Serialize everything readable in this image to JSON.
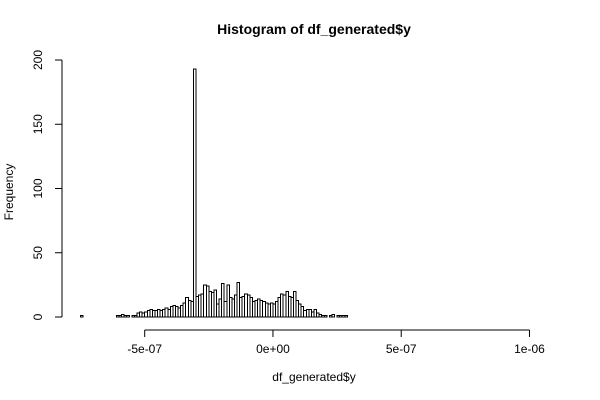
{
  "chart_data": {
    "type": "bar",
    "title": "Histogram of df_generated$y",
    "xlabel": "df_generated$y",
    "ylabel": "Frequency",
    "xlim": [
      -7.6e-07,
      1.08e-06
    ],
    "ylim": [
      0,
      200
    ],
    "bin_width": 1e-08,
    "bin_start": -7.5e-07,
    "x_ticks": [
      {
        "value": -5e-07,
        "label": "-5e-07"
      },
      {
        "value": 0,
        "label": "0e+00"
      },
      {
        "value": 5e-07,
        "label": "5e-07"
      },
      {
        "value": 1e-06,
        "label": "1e-06"
      }
    ],
    "y_ticks": [
      {
        "value": 0,
        "label": "0"
      },
      {
        "value": 50,
        "label": "50"
      },
      {
        "value": 100,
        "label": "100"
      },
      {
        "value": 150,
        "label": "150"
      },
      {
        "value": 200,
        "label": "200"
      }
    ],
    "values": [
      1,
      0,
      0,
      0,
      0,
      0,
      0,
      0,
      0,
      0,
      0,
      0,
      0,
      0,
      1,
      1,
      2,
      1,
      1,
      0,
      1,
      1,
      3,
      4,
      3,
      4,
      5,
      6,
      5,
      5,
      6,
      5,
      6,
      7,
      6,
      8,
      9,
      8,
      7,
      9,
      11,
      15,
      13,
      12,
      193,
      16,
      17,
      18,
      25,
      24,
      20,
      19,
      21,
      10,
      14,
      26,
      12,
      25,
      15,
      14,
      17,
      27,
      15,
      16,
      18,
      17,
      15,
      12,
      13,
      14,
      13,
      12,
      11,
      10,
      11,
      10,
      12,
      15,
      18,
      17,
      20,
      16,
      15,
      20,
      13,
      10,
      8,
      5,
      6,
      6,
      4,
      6,
      3,
      2,
      1,
      1,
      0,
      1,
      2,
      0,
      1,
      1,
      1,
      1
    ]
  }
}
